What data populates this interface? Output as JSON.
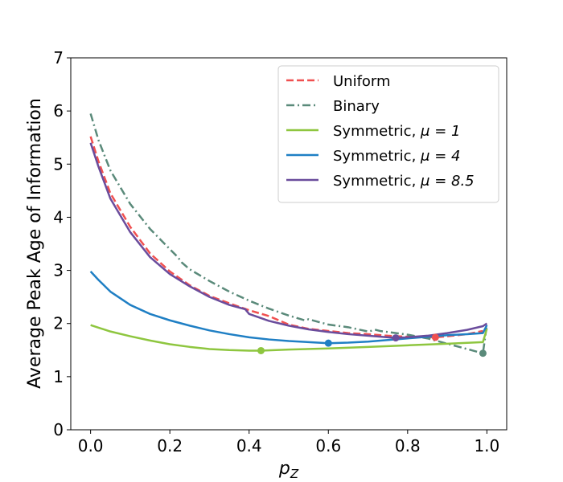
{
  "chart_data": {
    "type": "line",
    "xlabel": "p_Z",
    "ylabel": "Average Peak Age of Information",
    "xlim": [
      -0.05,
      1.05
    ],
    "ylim": [
      0,
      7
    ],
    "xticks": [
      0.0,
      0.2,
      0.4,
      0.6,
      0.8,
      1.0
    ],
    "xtick_labels": [
      "0.0",
      "0.2",
      "0.4",
      "0.6",
      "0.8",
      "1.0"
    ],
    "yticks": [
      0,
      1,
      2,
      3,
      4,
      5,
      6,
      7
    ],
    "ytick_labels": [
      "0",
      "1",
      "2",
      "3",
      "4",
      "5",
      "6",
      "7"
    ],
    "grid": false,
    "legend_position": "top-right",
    "series": [
      {
        "name": "Uniform",
        "legend_main": "Uniform",
        "legend_mu": "",
        "color": "#f05050",
        "dash": "dashed",
        "x": [
          0.0,
          0.02,
          0.05,
          0.1,
          0.15,
          0.2,
          0.25,
          0.3,
          0.35,
          0.4,
          0.45,
          0.5,
          0.55,
          0.6,
          0.65,
          0.7,
          0.75,
          0.8,
          0.85,
          0.87,
          0.9,
          0.95,
          0.99
        ],
        "y": [
          5.52,
          5.05,
          4.45,
          3.82,
          3.32,
          2.98,
          2.72,
          2.52,
          2.38,
          2.25,
          2.14,
          1.98,
          1.9,
          1.86,
          1.82,
          1.8,
          1.77,
          1.75,
          1.74,
          1.74,
          1.76,
          1.8,
          1.86
        ],
        "markers": [
          {
            "x": 0.87,
            "y": 1.74
          }
        ]
      },
      {
        "name": "Binary",
        "legend_main": "Binary",
        "legend_mu": "",
        "color": "#5a8a7a",
        "dash": "dashdot",
        "x": [
          0.0,
          0.02,
          0.05,
          0.1,
          0.15,
          0.2,
          0.22,
          0.23,
          0.25,
          0.3,
          0.35,
          0.4,
          0.45,
          0.5,
          0.54,
          0.55,
          0.6,
          0.65,
          0.7,
          0.72,
          0.73,
          0.75,
          0.8,
          0.85,
          0.9,
          0.95,
          0.985,
          0.99,
          1.0
        ],
        "y": [
          5.95,
          5.45,
          4.88,
          4.25,
          3.78,
          3.4,
          3.25,
          3.15,
          3.02,
          2.8,
          2.6,
          2.43,
          2.28,
          2.15,
          2.06,
          2.08,
          1.98,
          1.93,
          1.85,
          1.88,
          1.86,
          1.84,
          1.79,
          1.72,
          1.62,
          1.52,
          1.45,
          1.44,
          1.98
        ],
        "markers": [
          {
            "x": 0.99,
            "y": 1.44
          }
        ]
      },
      {
        "name": "Symmetric, μ=1",
        "legend_main": "Symmetric, ",
        "legend_mu": "μ = 1",
        "color": "#8ec63f",
        "dash": "solid",
        "x": [
          0.0,
          0.05,
          0.1,
          0.15,
          0.2,
          0.25,
          0.3,
          0.35,
          0.4,
          0.43,
          0.5,
          0.6,
          0.7,
          0.8,
          0.9,
          0.99,
          1.0
        ],
        "y": [
          1.97,
          1.85,
          1.76,
          1.68,
          1.61,
          1.56,
          1.52,
          1.5,
          1.49,
          1.49,
          1.51,
          1.53,
          1.56,
          1.59,
          1.62,
          1.65,
          1.9
        ],
        "markers": [
          {
            "x": 0.43,
            "y": 1.49
          }
        ]
      },
      {
        "name": "Symmetric, μ=4",
        "legend_main": "Symmetric, ",
        "legend_mu": "μ = 4",
        "color": "#1f7fc4",
        "dash": "solid",
        "x": [
          0.0,
          0.02,
          0.05,
          0.1,
          0.15,
          0.2,
          0.25,
          0.3,
          0.35,
          0.4,
          0.45,
          0.5,
          0.55,
          0.6,
          0.65,
          0.7,
          0.75,
          0.8,
          0.85,
          0.9,
          0.95,
          0.99,
          1.0
        ],
        "y": [
          2.98,
          2.82,
          2.6,
          2.35,
          2.18,
          2.06,
          1.96,
          1.87,
          1.8,
          1.74,
          1.7,
          1.67,
          1.65,
          1.63,
          1.64,
          1.66,
          1.69,
          1.72,
          1.75,
          1.78,
          1.8,
          1.82,
          1.97
        ],
        "markers": [
          {
            "x": 0.6,
            "y": 1.63
          }
        ]
      },
      {
        "name": "Symmetric, μ=8.5",
        "legend_main": "Symmetric, ",
        "legend_mu": "μ = 8.5",
        "color": "#6a4c9c",
        "dash": "solid",
        "x": [
          0.0,
          0.02,
          0.05,
          0.1,
          0.15,
          0.2,
          0.25,
          0.3,
          0.35,
          0.39,
          0.4,
          0.45,
          0.5,
          0.55,
          0.6,
          0.65,
          0.7,
          0.75,
          0.77,
          0.8,
          0.85,
          0.9,
          0.95,
          0.99,
          1.0
        ],
        "y": [
          5.4,
          4.95,
          4.35,
          3.72,
          3.25,
          2.93,
          2.7,
          2.5,
          2.35,
          2.27,
          2.18,
          2.05,
          1.96,
          1.89,
          1.84,
          1.8,
          1.77,
          1.74,
          1.73,
          1.74,
          1.77,
          1.82,
          1.88,
          1.95,
          2.0
        ],
        "markers": [
          {
            "x": 0.77,
            "y": 1.73
          }
        ]
      }
    ]
  }
}
